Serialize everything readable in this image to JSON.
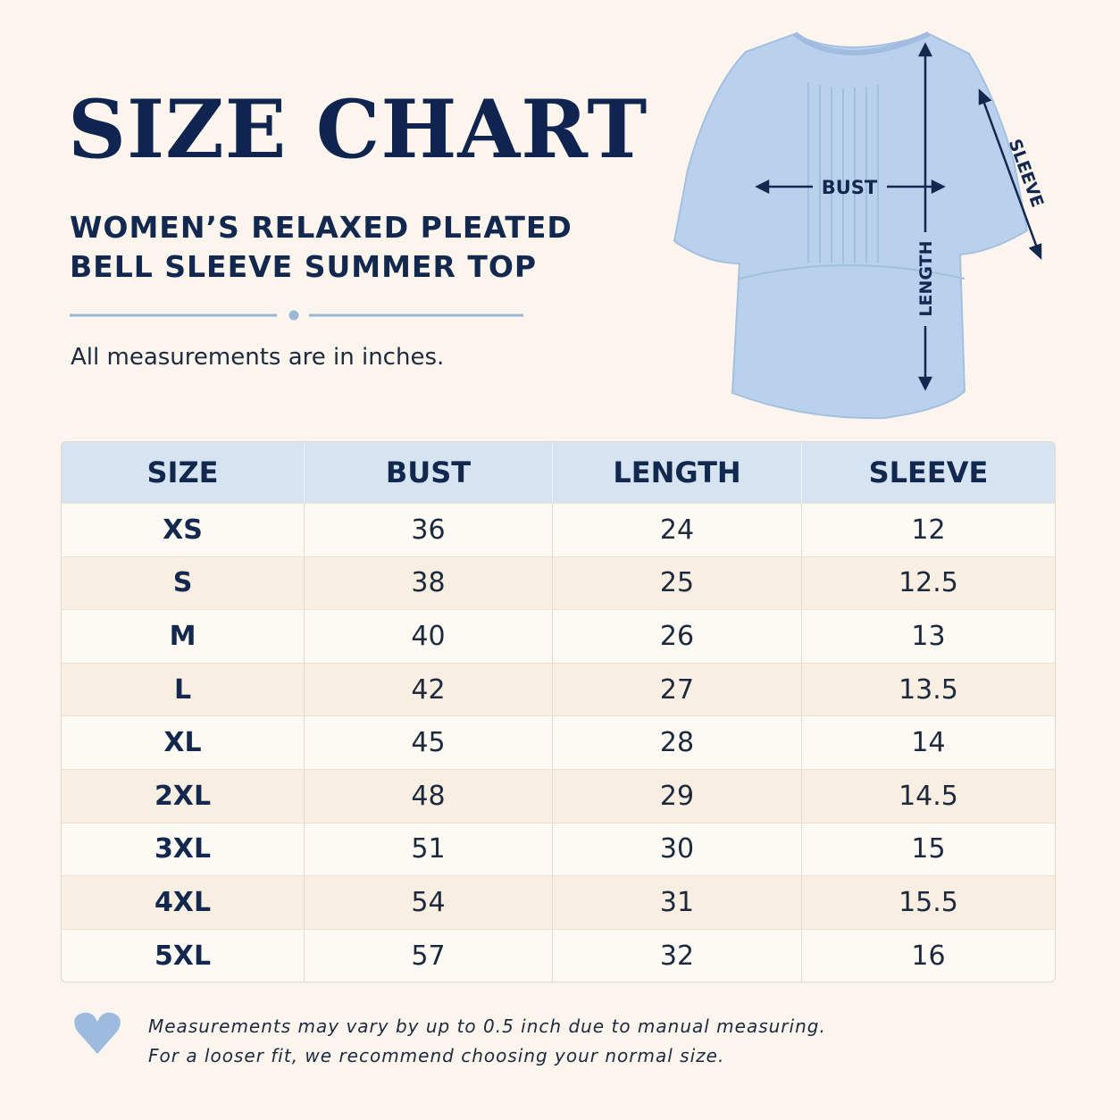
{
  "header": {
    "title": "SIZE CHART",
    "subtitle_lines": [
      "WOMEN’S RELAXED PLEATED",
      "BELL SLEEVE SUMMER TOP"
    ],
    "note": "All measurements are in inches."
  },
  "diagram": {
    "bust": "BUST",
    "length": "LENGTH",
    "sleeve": "SLEEVE"
  },
  "table": {
    "columns": [
      "SIZE",
      "BUST",
      "LENGTH",
      "SLEEVE"
    ],
    "rows": [
      [
        "XS",
        36,
        24,
        12
      ],
      [
        "S",
        38,
        25,
        12.5
      ],
      [
        "M",
        40,
        26,
        13
      ],
      [
        "L",
        42,
        27,
        13.5
      ],
      [
        "XL",
        45,
        28,
        14
      ],
      [
        "2XL",
        48,
        29,
        14.5
      ],
      [
        "3XL",
        51,
        30,
        15
      ],
      [
        "4XL",
        54,
        31,
        15.5
      ],
      [
        "5XL",
        57,
        32,
        16
      ]
    ]
  },
  "footer": {
    "lines": [
      "Measurements may vary by up to 0.5 inch due to manual measuring.",
      "For a looser fit, we recommend choosing your normal size."
    ]
  }
}
